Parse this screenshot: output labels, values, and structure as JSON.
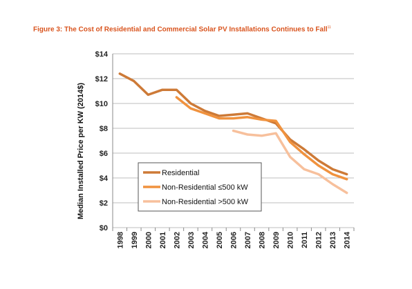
{
  "figure": {
    "title": "Figure 3: The Cost of Residential and Commercial Solar PV Installations Continues to Fall",
    "footnote_marker": "11"
  },
  "chart_data": {
    "type": "line",
    "title": "Figure 3: The Cost of Residential and Commercial Solar PV Installations Continues to Fall",
    "xlabel": "",
    "ylabel": "Median Installed Price per KW (2014$)",
    "categories": [
      "1998",
      "1999",
      "2000",
      "2001",
      "2002",
      "2003",
      "2004",
      "2005",
      "2006",
      "2007",
      "2008",
      "2009",
      "2010",
      "2011",
      "2012",
      "2013",
      "2014"
    ],
    "yticks": [
      "$0",
      "$2",
      "$4",
      "$6",
      "$8",
      "$10",
      "$12",
      "$14"
    ],
    "ylim": [
      0,
      14
    ],
    "grid": "horizontal",
    "legend_position": "lower-left",
    "series": [
      {
        "name": "Residential",
        "color": "#cd7a37",
        "values": [
          12.4,
          11.8,
          10.7,
          11.1,
          11.1,
          10.0,
          9.4,
          9.0,
          9.1,
          9.2,
          8.8,
          8.4,
          7.1,
          6.3,
          5.4,
          4.7,
          4.3
        ]
      },
      {
        "name": "Non-Residential ≤500 kW",
        "color": "#f0923e",
        "values": [
          null,
          null,
          null,
          null,
          10.5,
          9.6,
          9.2,
          8.8,
          8.8,
          8.9,
          8.7,
          8.6,
          6.9,
          5.9,
          5.0,
          4.3,
          3.9
        ]
      },
      {
        "name": "Non-Residential >500 kW",
        "color": "#f7c09c",
        "values": [
          null,
          null,
          null,
          null,
          null,
          null,
          null,
          null,
          7.8,
          7.5,
          7.4,
          7.6,
          5.7,
          4.7,
          4.3,
          3.5,
          2.8
        ]
      }
    ]
  }
}
